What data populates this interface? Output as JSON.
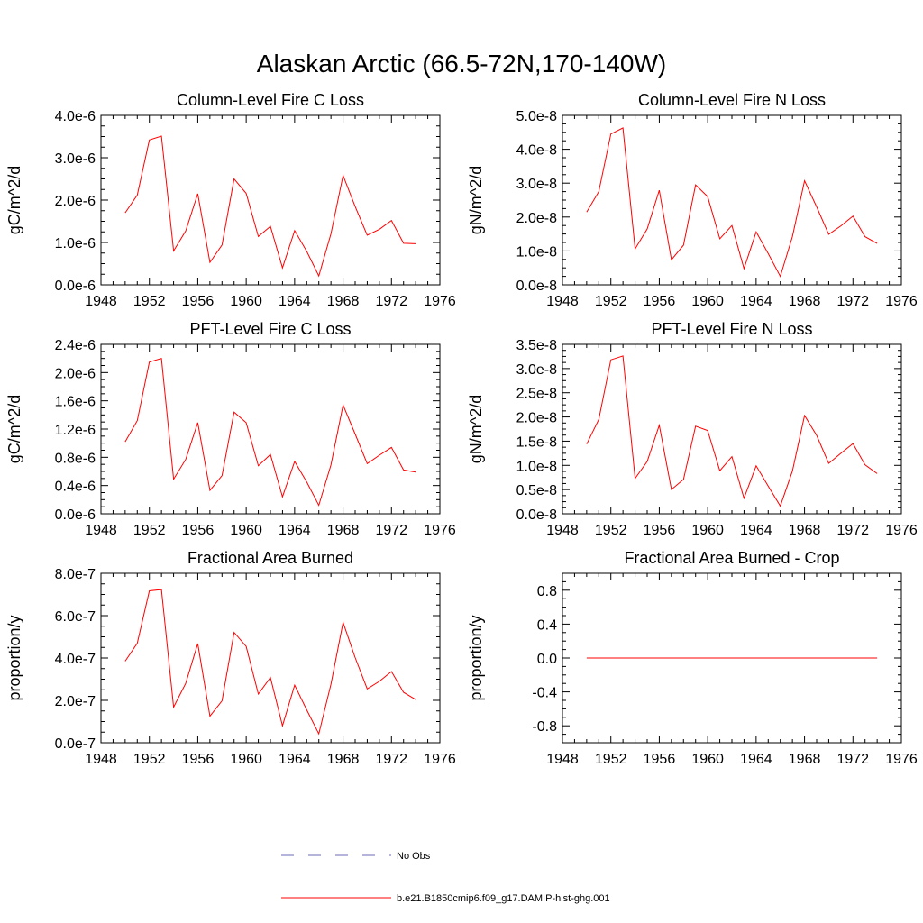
{
  "figure": {
    "title": "Alaskan Arctic (66.5-72N,170-140W)"
  },
  "legend": {
    "obs_label": "No Obs",
    "model_label": "b.e21.B1850cmip6.f09_g17.DAMIP-hist-ghg.001",
    "obs_color": "#6b6bb8",
    "model_color": "#ff0000"
  },
  "chart_data": [
    {
      "type": "line",
      "title": "Column-Level Fire C Loss",
      "ylabel": "gC/m^2/d",
      "xlim": [
        1948,
        1976
      ],
      "xticks": [
        "1948",
        "1952",
        "1956",
        "1960",
        "1964",
        "1968",
        "1972",
        "1976"
      ],
      "ylim": [
        0,
        4e-06
      ],
      "yticks": [
        0,
        1e-06,
        2e-06,
        3e-06,
        4e-06
      ],
      "ytick_labels": [
        "0.0e-6",
        "1.0e-6",
        "2.0e-6",
        "3.0e-6",
        "4.0e-6"
      ],
      "series": [
        {
          "color": "#ff0000",
          "x": [
            1950,
            1951,
            1952,
            1953,
            1954,
            1955,
            1956,
            1957,
            1958,
            1959,
            1960,
            1961,
            1962,
            1963,
            1964,
            1965,
            1966,
            1967,
            1968,
            1969,
            1970,
            1971,
            1972,
            1973,
            1974
          ],
          "y": [
            1.7e-06,
            2.12e-06,
            3.42e-06,
            3.51e-06,
            8e-07,
            1.27e-06,
            2.15e-06,
            5.3e-07,
            9.4e-07,
            2.5e-06,
            2.16e-06,
            1.14e-06,
            1.38e-06,
            4e-07,
            1.28e-06,
            7.9e-07,
            2.1e-07,
            1.2e-06,
            2.58e-06,
            1.85e-06,
            1.17e-06,
            1.31e-06,
            1.52e-06,
            9.8e-07,
            9.7e-07
          ]
        }
      ]
    },
    {
      "type": "line",
      "title": "Column-Level Fire N Loss",
      "ylabel": "gN/m^2/d",
      "xlim": [
        1948,
        1976
      ],
      "xticks": [
        "1948",
        "1952",
        "1956",
        "1960",
        "1964",
        "1968",
        "1972",
        "1976"
      ],
      "ylim": [
        0,
        5e-08
      ],
      "yticks": [
        0,
        1e-08,
        2e-08,
        3e-08,
        4e-08,
        5e-08
      ],
      "ytick_labels": [
        "0.0e-8",
        "1.0e-8",
        "2.0e-8",
        "3.0e-8",
        "4.0e-8",
        "5.0e-8"
      ],
      "series": [
        {
          "color": "#ff0000",
          "x": [
            1950,
            1951,
            1952,
            1953,
            1954,
            1955,
            1956,
            1957,
            1958,
            1959,
            1960,
            1961,
            1962,
            1963,
            1964,
            1965,
            1966,
            1967,
            1968,
            1969,
            1970,
            1971,
            1972,
            1973,
            1974
          ],
          "y": [
            2.15e-08,
            2.75e-08,
            4.45e-08,
            4.63e-08,
            1.06e-08,
            1.65e-08,
            2.79e-08,
            7.4e-09,
            1.17e-08,
            2.95e-08,
            2.6e-08,
            1.36e-08,
            1.75e-08,
            4.8e-09,
            1.56e-08,
            9.2e-09,
            2.5e-09,
            1.42e-08,
            3.07e-08,
            2.3e-08,
            1.49e-08,
            1.74e-08,
            2.03e-08,
            1.42e-08,
            1.22e-08
          ]
        }
      ]
    },
    {
      "type": "line",
      "title": "PFT-Level Fire C Loss",
      "ylabel": "gC/m^2/d",
      "xlim": [
        1948,
        1976
      ],
      "xticks": [
        "1948",
        "1952",
        "1956",
        "1960",
        "1964",
        "1968",
        "1972",
        "1976"
      ],
      "ylim": [
        0,
        2.4e-06
      ],
      "yticks": [
        0,
        4e-07,
        8e-07,
        1.2e-06,
        1.6e-06,
        2e-06,
        2.4e-06
      ],
      "ytick_labels": [
        "0.0e-6",
        "0.4e-6",
        "0.8e-6",
        "1.2e-6",
        "1.6e-6",
        "2.0e-6",
        "2.4e-6"
      ],
      "series": [
        {
          "color": "#ff0000",
          "x": [
            1950,
            1951,
            1952,
            1953,
            1954,
            1955,
            1956,
            1957,
            1958,
            1959,
            1960,
            1961,
            1962,
            1963,
            1964,
            1965,
            1966,
            1967,
            1968,
            1969,
            1970,
            1971,
            1972,
            1973,
            1974
          ],
          "y": [
            1.02e-06,
            1.32e-06,
            2.15e-06,
            2.2e-06,
            4.9e-07,
            7.7e-07,
            1.29e-06,
            3.3e-07,
            5.4e-07,
            1.44e-06,
            1.29e-06,
            6.8e-07,
            8.4e-07,
            2.4e-07,
            7.4e-07,
            4.5e-07,
            1.2e-07,
            6.9e-07,
            1.54e-06,
            1.13e-06,
            7.1e-07,
            8.3e-07,
            9.4e-07,
            6.2e-07,
            5.9e-07
          ]
        }
      ]
    },
    {
      "type": "line",
      "title": "PFT-Level Fire N Loss",
      "ylabel": "gN/m^2/d",
      "xlim": [
        1948,
        1976
      ],
      "xticks": [
        "1948",
        "1952",
        "1956",
        "1960",
        "1964",
        "1968",
        "1972",
        "1976"
      ],
      "ylim": [
        0,
        3.5e-08
      ],
      "yticks": [
        0,
        5e-09,
        1e-08,
        1.5e-08,
        2e-08,
        2.5e-08,
        3e-08,
        3.5e-08
      ],
      "ytick_labels": [
        "0.0e-8",
        "0.5e-8",
        "1.0e-8",
        "1.5e-8",
        "2.0e-8",
        "2.5e-8",
        "3.0e-8",
        "3.5e-8"
      ],
      "series": [
        {
          "color": "#ff0000",
          "x": [
            1950,
            1951,
            1952,
            1953,
            1954,
            1955,
            1956,
            1957,
            1958,
            1959,
            1960,
            1961,
            1962,
            1963,
            1964,
            1965,
            1966,
            1967,
            1968,
            1969,
            1970,
            1971,
            1972,
            1973,
            1974
          ],
          "y": [
            1.44e-08,
            1.95e-08,
            3.18e-08,
            3.26e-08,
            7.3e-09,
            1.08e-08,
            1.83e-08,
            5e-09,
            7.1e-09,
            1.81e-08,
            1.72e-08,
            8.9e-09,
            1.18e-08,
            3.2e-09,
            9.9e-09,
            5.7e-09,
            1.6e-09,
            8.8e-09,
            2.03e-08,
            1.62e-08,
            1.04e-08,
            1.25e-08,
            1.45e-08,
            1.01e-08,
            8.3e-09
          ]
        }
      ]
    },
    {
      "type": "line",
      "title": "Fractional Area Burned",
      "ylabel": "proportion/y",
      "xlim": [
        1948,
        1976
      ],
      "xticks": [
        "1948",
        "1952",
        "1956",
        "1960",
        "1964",
        "1968",
        "1972",
        "1976"
      ],
      "ylim": [
        0,
        8e-07
      ],
      "yticks": [
        0,
        2e-07,
        4e-07,
        6e-07,
        8e-07
      ],
      "ytick_labels": [
        "0.0e-7",
        "2.0e-7",
        "4.0e-7",
        "6.0e-7",
        "8.0e-7"
      ],
      "series": [
        {
          "color": "#ff0000",
          "x": [
            1950,
            1951,
            1952,
            1953,
            1954,
            1955,
            1956,
            1957,
            1958,
            1959,
            1960,
            1961,
            1962,
            1963,
            1964,
            1965,
            1966,
            1967,
            1968,
            1969,
            1970,
            1971,
            1972,
            1973,
            1974
          ],
          "y": [
            3.85e-07,
            4.7e-07,
            7.17e-07,
            7.23e-07,
            1.68e-07,
            2.8e-07,
            4.68e-07,
            1.25e-07,
            1.98e-07,
            5.21e-07,
            4.55e-07,
            2.3e-07,
            3.08e-07,
            8e-08,
            2.72e-07,
            1.55e-07,
            4.2e-08,
            2.75e-07,
            5.68e-07,
            4.02e-07,
            2.54e-07,
            2.9e-07,
            3.36e-07,
            2.38e-07,
            2.04e-07
          ]
        }
      ]
    },
    {
      "type": "line",
      "title": "Fractional Area Burned - Crop",
      "ylabel": "proportion/y",
      "xlim": [
        1948,
        1976
      ],
      "xticks": [
        "1948",
        "1952",
        "1956",
        "1960",
        "1964",
        "1968",
        "1972",
        "1976"
      ],
      "ylim": [
        -1.0,
        1.0
      ],
      "yticks": [
        -0.8,
        -0.4,
        0.0,
        0.4,
        0.8
      ],
      "ytick_labels": [
        "-0.8",
        "-0.4",
        "0.0",
        "0.4",
        "0.8"
      ],
      "series": [
        {
          "color": "#ff0000",
          "x": [
            1950,
            1951,
            1952,
            1953,
            1954,
            1955,
            1956,
            1957,
            1958,
            1959,
            1960,
            1961,
            1962,
            1963,
            1964,
            1965,
            1966,
            1967,
            1968,
            1969,
            1970,
            1971,
            1972,
            1973,
            1974
          ],
          "y": [
            0,
            0,
            0,
            0,
            0,
            0,
            0,
            0,
            0,
            0,
            0,
            0,
            0,
            0,
            0,
            0,
            0,
            0,
            0,
            0,
            0,
            0,
            0,
            0,
            0
          ]
        }
      ]
    }
  ]
}
